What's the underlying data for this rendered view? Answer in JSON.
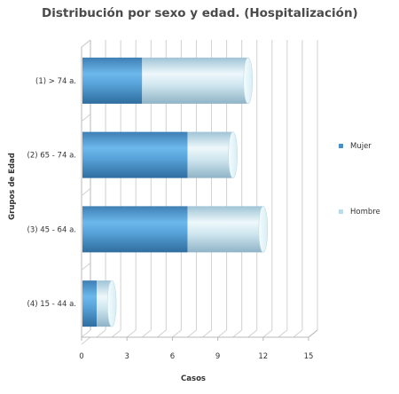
{
  "chart_data": {
    "type": "bar",
    "orientation": "horizontal",
    "stacked": true,
    "style": "3d-cylinder",
    "title": "Distribución por sexo y edad. (Hospitalización)",
    "xlabel": "Casos",
    "ylabel": "Grupos de Edad",
    "xlim": [
      0,
      15
    ],
    "xticks": [
      "0",
      "3",
      "6",
      "9",
      "12",
      "15"
    ],
    "grid": true,
    "legend_position": "right",
    "categories": [
      "(1) > 74 a.",
      "(2) 65 - 74 a.",
      "(3) 45 - 64 a.",
      "(4) 15 - 44 a."
    ],
    "series": [
      {
        "name": "Mujer",
        "color": "#4a90c8",
        "values": [
          4,
          7,
          7,
          1
        ]
      },
      {
        "name": "Hombre",
        "color": "#b8dcec",
        "values": [
          7,
          3,
          5,
          1
        ]
      }
    ]
  }
}
